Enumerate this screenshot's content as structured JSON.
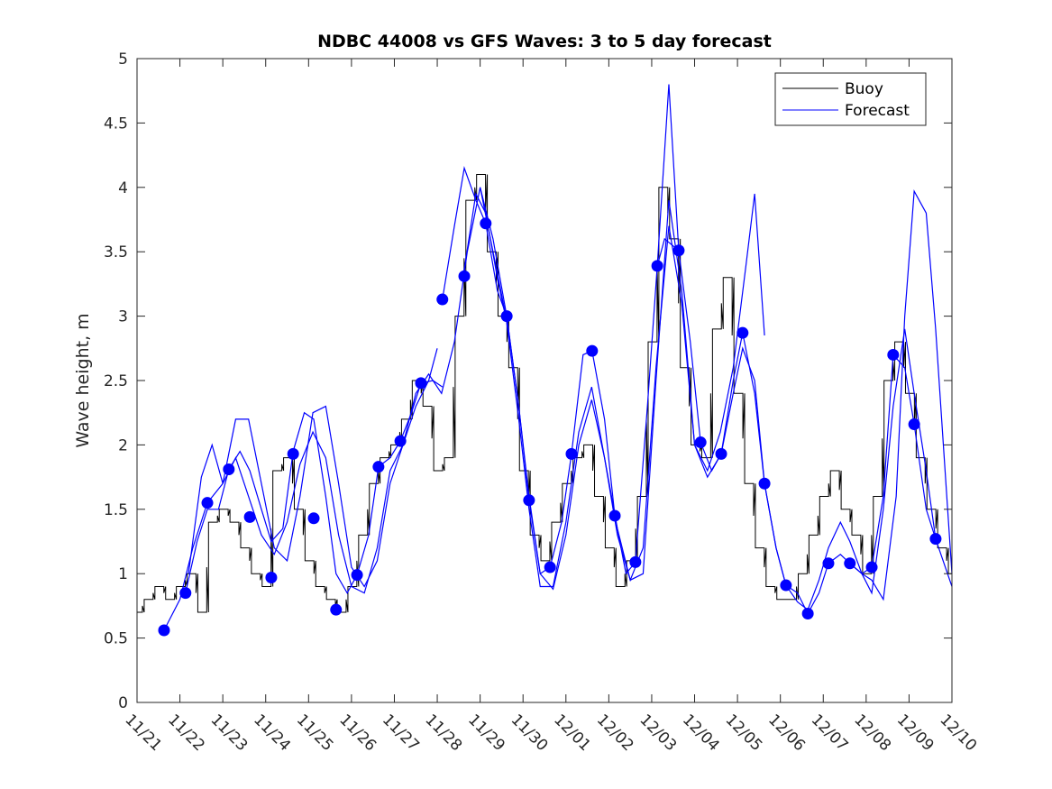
{
  "chart_data": {
    "type": "line",
    "title": "NDBC 44008 vs GFS Waves: 3 to 5 day forecast",
    "xlabel": "",
    "ylabel": "Wave height, m",
    "x_unit": "days since 11/21",
    "xlim": [
      0,
      19
    ],
    "ylim": [
      0,
      5
    ],
    "yticks": [
      0,
      0.5,
      1,
      1.5,
      2,
      2.5,
      3,
      3.5,
      4,
      4.5,
      5
    ],
    "ytick_labels": [
      "0",
      "0.5",
      "1",
      "1.5",
      "2",
      "2.5",
      "3",
      "3.5",
      "4",
      "4.5",
      "5"
    ],
    "xticks": [
      0,
      1,
      2,
      3,
      4,
      5,
      6,
      7,
      8,
      9,
      10,
      11,
      12,
      13,
      14,
      15,
      16,
      17,
      18,
      19
    ],
    "xtick_labels": [
      "11/21",
      "11/22",
      "11/23",
      "11/24",
      "11/25",
      "11/26",
      "11/27",
      "11/28",
      "11/29",
      "11/30",
      "12/01",
      "12/02",
      "12/03",
      "12/04",
      "12/05",
      "12/06",
      "12/07",
      "12/08",
      "12/09",
      "12/10"
    ],
    "grid": false,
    "legend": {
      "position": "top-right",
      "entries": [
        {
          "label": "Buoy",
          "color": "#000000"
        },
        {
          "label": "Forecast",
          "color": "#0000ff"
        }
      ]
    },
    "colors": {
      "buoy": "#000000",
      "forecast": "#0000ff",
      "marker": "#0000ff"
    },
    "buoy": {
      "x": [
        0,
        0.25,
        0.5,
        0.75,
        1,
        1.25,
        1.5,
        1.75,
        2,
        2.25,
        2.5,
        2.75,
        3,
        3.25,
        3.5,
        3.75,
        4,
        4.25,
        4.5,
        4.75,
        5,
        5.25,
        5.5,
        5.75,
        6,
        6.25,
        6.5,
        6.75,
        7,
        7.25,
        7.5,
        7.75,
        8,
        8.25,
        8.5,
        8.75,
        9,
        9.25,
        9.5,
        9.75,
        10,
        10.25,
        10.5,
        10.75,
        11,
        11.25,
        11.5,
        11.75,
        12,
        12.25,
        12.5,
        12.75,
        13,
        13.25,
        13.5,
        13.75,
        14,
        14.25,
        14.5,
        14.75,
        15,
        15.25,
        15.5,
        15.75,
        16,
        16.25,
        16.5,
        16.75,
        17,
        17.25,
        17.5,
        17.75,
        18,
        18.25,
        18.5,
        18.75,
        19
      ],
      "y": [
        0.7,
        0.8,
        0.9,
        0.8,
        0.9,
        1.0,
        0.7,
        1.4,
        1.5,
        1.4,
        1.2,
        1.0,
        0.9,
        1.8,
        1.9,
        1.5,
        1.1,
        0.9,
        0.8,
        0.7,
        0.9,
        1.3,
        1.7,
        1.9,
        2.0,
        2.2,
        2.5,
        2.3,
        1.8,
        1.9,
        3.0,
        3.9,
        4.1,
        3.5,
        3.0,
        2.6,
        1.8,
        1.3,
        1.1,
        1.4,
        1.7,
        1.9,
        2.0,
        1.6,
        1.2,
        0.9,
        1.1,
        1.6,
        2.8,
        4.0,
        3.6,
        2.6,
        2.0,
        1.9,
        2.9,
        3.3,
        2.4,
        1.7,
        1.2,
        0.9,
        0.8,
        0.8,
        1.0,
        1.3,
        1.6,
        1.8,
        1.5,
        1.3,
        1.0,
        1.6,
        2.5,
        2.8,
        2.4,
        1.9,
        1.5,
        1.2,
        1.0
      ]
    },
    "forecast_series": [
      {
        "name": "forecast-1",
        "x": [
          0.63,
          1.0,
          1.3,
          1.64,
          2.0,
          2.3,
          2.6,
          2.9,
          3.2,
          3.5,
          3.8,
          4.1,
          4.4,
          4.7,
          5.0,
          5.3,
          5.6,
          5.9,
          6.2,
          6.5,
          6.8,
          7.0
        ],
        "y": [
          0.56,
          0.8,
          1.2,
          1.55,
          1.7,
          1.9,
          1.6,
          1.3,
          1.15,
          1.4,
          1.85,
          2.1,
          1.9,
          1.3,
          0.9,
          0.85,
          1.2,
          1.8,
          2.0,
          2.3,
          2.5,
          2.75
        ]
      },
      {
        "name": "forecast-2",
        "x": [
          1.13,
          1.4,
          1.64,
          1.9,
          2.14,
          2.4,
          2.63,
          2.9,
          3.13,
          3.4,
          3.64,
          3.9,
          4.12,
          4.4,
          4.64,
          4.9,
          5.13,
          5.4,
          5.63,
          5.9,
          6.14,
          6.4,
          6.62,
          6.9,
          7.12
        ],
        "y": [
          0.85,
          1.25,
          1.5,
          1.5,
          1.81,
          1.95,
          1.8,
          1.5,
          1.25,
          1.35,
          1.95,
          2.25,
          2.2,
          1.6,
          1.0,
          0.85,
          0.99,
          1.3,
          1.83,
          1.9,
          2.03,
          2.25,
          2.48,
          2.5,
          2.45
        ]
      },
      {
        "name": "forecast-3",
        "x": [
          1.2,
          1.5,
          1.75,
          2.0,
          2.3,
          2.6,
          2.9,
          3.2,
          3.5,
          3.8,
          4.1,
          4.4,
          4.7,
          5.0,
          5.3,
          5.6,
          5.9,
          6.2,
          6.5,
          6.8,
          7.1,
          7.4,
          7.7,
          8.0,
          8.3,
          8.6
        ],
        "y": [
          1.0,
          1.75,
          2.0,
          1.7,
          2.2,
          2.2,
          1.7,
          1.2,
          1.1,
          1.6,
          2.25,
          2.3,
          1.7,
          1.05,
          0.9,
          1.1,
          1.7,
          2.0,
          2.4,
          2.55,
          2.4,
          2.8,
          3.5,
          4.0,
          3.5,
          3.0
        ]
      },
      {
        "name": "forecast-4",
        "x": [
          7.12,
          7.4,
          7.63,
          7.9,
          8.13,
          8.4,
          8.62,
          8.9,
          9.14,
          9.4,
          9.63,
          9.9,
          10.13,
          10.4,
          10.61,
          10.9,
          11.14,
          11.4,
          11.62,
          11.9,
          12.13,
          12.4,
          12.63
        ],
        "y": [
          3.13,
          3.7,
          4.15,
          3.9,
          3.72,
          3.2,
          3.0,
          2.3,
          1.57,
          1.0,
          1.05,
          1.4,
          1.93,
          2.7,
          2.73,
          2.2,
          1.45,
          1.0,
          1.09,
          2.3,
          3.39,
          4.8,
          3.51
        ]
      },
      {
        "name": "forecast-5",
        "x": [
          7.6,
          7.9,
          8.13,
          8.4,
          8.62,
          8.9,
          9.14,
          9.4,
          9.7,
          10.0,
          10.3,
          10.6,
          10.9,
          11.2,
          11.5,
          11.8,
          12.1,
          12.4,
          12.7,
          13.0,
          13.3,
          13.6,
          13.9,
          14.2,
          14.4,
          14.63
        ],
        "y": [
          3.3,
          3.95,
          3.8,
          3.3,
          2.95,
          2.2,
          1.5,
          0.9,
          0.9,
          1.4,
          2.1,
          2.45,
          1.9,
          1.3,
          0.95,
          1.0,
          2.5,
          3.9,
          3.2,
          2.0,
          1.8,
          2.1,
          2.6,
          3.4,
          3.95,
          2.85
        ]
      },
      {
        "name": "forecast-6",
        "x": [
          8.0,
          8.3,
          8.62,
          8.9,
          9.14,
          9.4,
          9.7,
          10.0,
          10.3,
          10.6,
          10.9,
          11.2,
          11.5,
          11.8,
          12.1,
          12.4,
          12.7,
          13.0,
          13.3,
          13.62,
          13.9,
          14.12,
          14.4,
          14.63,
          14.9,
          15.13,
          15.4,
          15.64,
          15.9,
          16.12,
          16.4,
          16.62,
          16.9,
          17.13,
          17.4,
          17.63,
          17.9,
          18.12,
          18.4,
          18.62,
          19.0
        ],
        "y": [
          4.0,
          3.6,
          3.0,
          2.3,
          1.6,
          1.0,
          0.88,
          1.3,
          2.0,
          2.35,
          1.9,
          1.35,
          0.95,
          1.2,
          2.6,
          3.7,
          3.1,
          2.0,
          1.75,
          1.93,
          2.4,
          2.75,
          2.5,
          1.7,
          1.2,
          0.91,
          0.85,
          0.69,
          0.85,
          1.08,
          1.15,
          1.08,
          1.0,
          1.05,
          1.6,
          2.7,
          2.6,
          2.16,
          1.5,
          1.27,
          0.9
        ]
      },
      {
        "name": "forecast-7",
        "x": [
          12.13,
          12.3,
          12.63,
          12.9,
          13.14,
          13.4,
          13.62,
          13.9,
          14.12,
          14.4,
          14.63,
          14.9,
          15.13,
          15.4,
          15.64,
          15.9,
          16.12,
          16.4,
          16.62,
          16.9,
          17.13,
          17.4,
          17.63,
          17.9,
          18.12,
          18.4,
          18.62
        ],
        "y": [
          3.39,
          3.6,
          3.51,
          2.8,
          2.02,
          1.8,
          1.93,
          2.5,
          2.87,
          2.4,
          1.7,
          1.2,
          0.91,
          0.78,
          0.72,
          0.95,
          1.2,
          1.4,
          1.25,
          1.0,
          0.85,
          1.5,
          2.3,
          2.9,
          2.4,
          1.8,
          1.27
        ]
      },
      {
        "name": "forecast-8",
        "x": [
          16.62,
          16.9,
          17.13,
          17.4,
          17.7,
          17.9,
          18.12,
          18.4,
          18.62,
          18.9,
          19.0
        ],
        "y": [
          1.08,
          1.0,
          0.95,
          0.8,
          1.6,
          3.0,
          3.97,
          3.8,
          2.9,
          1.5,
          1.0
        ]
      }
    ],
    "markers": {
      "x": [
        0.63,
        1.13,
        1.64,
        2.14,
        2.63,
        3.13,
        3.64,
        4.12,
        4.64,
        5.13,
        5.63,
        6.14,
        6.62,
        7.12,
        7.63,
        8.13,
        8.62,
        9.14,
        9.63,
        10.13,
        10.61,
        11.14,
        11.62,
        12.13,
        12.63,
        13.14,
        13.62,
        14.12,
        14.63,
        15.13,
        15.64,
        16.12,
        16.62,
        17.13,
        17.63,
        18.12,
        18.62
      ],
      "y": [
        0.56,
        0.85,
        1.55,
        1.81,
        1.44,
        0.97,
        1.93,
        1.43,
        0.72,
        0.99,
        1.83,
        2.03,
        2.48,
        3.13,
        3.31,
        3.72,
        3.0,
        1.57,
        1.05,
        1.93,
        2.73,
        1.45,
        1.09,
        3.39,
        3.51,
        2.02,
        1.93,
        2.87,
        1.7,
        0.91,
        0.69,
        1.08,
        1.08,
        1.05,
        2.7,
        2.16,
        1.27
      ]
    }
  }
}
